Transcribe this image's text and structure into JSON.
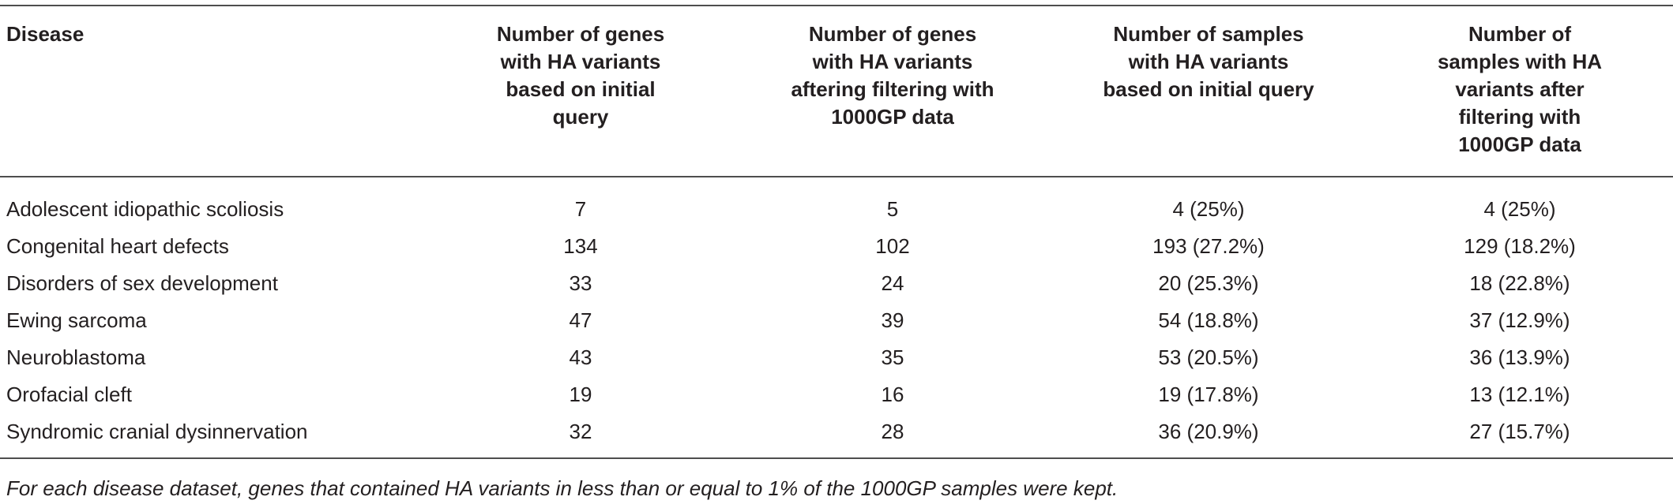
{
  "table": {
    "headers": [
      "Disease",
      "Number of genes with HA variants based on initial query",
      "Number of genes with HA variants aftering filtering with 1000GP data",
      "Number of samples with HA variants based on initial query",
      "Number of samples with HA variants after filtering with 1000GP data"
    ],
    "rows": [
      [
        "Adolescent idiopathic scoliosis",
        "7",
        "5",
        "4 (25%)",
        "4 (25%)"
      ],
      [
        "Congenital heart defects",
        "134",
        "102",
        "193 (27.2%)",
        "129 (18.2%)"
      ],
      [
        "Disorders of sex development",
        "33",
        "24",
        "20 (25.3%)",
        "18 (22.8%)"
      ],
      [
        "Ewing sarcoma",
        "47",
        "39",
        "54 (18.8%)",
        "37 (12.9%)"
      ],
      [
        "Neuroblastoma",
        "43",
        "35",
        "53 (20.5%)",
        "36 (13.9%)"
      ],
      [
        "Orofacial cleft",
        "19",
        "16",
        "19 (17.8%)",
        "13 (12.1%)"
      ],
      [
        "Syndromic cranial dysinnervation",
        "32",
        "28",
        "36 (20.9%)",
        "27 (15.7%)"
      ]
    ]
  },
  "footnote": "For each disease dataset, genes that contained HA variants in less than or equal to 1% of the 1000GP samples were kept."
}
